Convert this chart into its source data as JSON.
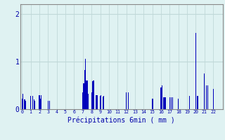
{
  "title": "",
  "xlabel": "Précipitations 6min ( mm )",
  "ylabel": "",
  "background_color": "#dff2f2",
  "bar_color": "#0000bb",
  "grid_color": "#c0d8d8",
  "axis_color": "#888888",
  "text_color": "#0000aa",
  "ylim": [
    0,
    2.2
  ],
  "yticks": [
    0,
    1,
    2
  ],
  "num_hours": 23,
  "bars_per_hour": 10,
  "bar_values": [
    0.22,
    0.32,
    0.0,
    0.2,
    0.18,
    0.0,
    0.0,
    0.0,
    0.0,
    0.0,
    0.28,
    0.0,
    0.28,
    0.0,
    0.2,
    0.18,
    0.0,
    0.0,
    0.0,
    0.0,
    0.3,
    0.22,
    0.3,
    0.0,
    0.0,
    0.0,
    0.0,
    0.0,
    0.0,
    0.0,
    0.18,
    0.0,
    0.18,
    0.0,
    0.0,
    0.0,
    0.0,
    0.0,
    0.0,
    0.0,
    0.0,
    0.0,
    0.0,
    0.0,
    0.0,
    0.0,
    0.0,
    0.0,
    0.0,
    0.0,
    0.0,
    0.0,
    0.0,
    0.0,
    0.0,
    0.0,
    0.0,
    0.0,
    0.0,
    0.0,
    0.0,
    0.0,
    0.0,
    0.0,
    0.0,
    0.0,
    0.0,
    0.0,
    0.0,
    0.0,
    0.35,
    0.55,
    0.82,
    1.05,
    0.6,
    0.6,
    0.32,
    0.0,
    0.0,
    0.0,
    0.35,
    0.58,
    0.6,
    0.6,
    0.0,
    0.3,
    0.3,
    0.3,
    0.0,
    0.0,
    0.28,
    0.3,
    0.0,
    0.26,
    0.28,
    0.0,
    0.0,
    0.0,
    0.0,
    0.0,
    0.0,
    0.0,
    0.0,
    0.0,
    0.0,
    0.0,
    0.0,
    0.0,
    0.0,
    0.0,
    0.0,
    0.0,
    0.0,
    0.0,
    0.0,
    0.0,
    0.0,
    0.0,
    0.0,
    0.0,
    0.35,
    0.0,
    0.35,
    0.0,
    0.0,
    0.0,
    0.0,
    0.0,
    0.0,
    0.0,
    0.0,
    0.0,
    0.0,
    0.0,
    0.0,
    0.0,
    0.0,
    0.0,
    0.0,
    0.0,
    0.0,
    0.0,
    0.0,
    0.0,
    0.0,
    0.0,
    0.0,
    0.0,
    0.0,
    0.0,
    0.22,
    0.22,
    0.0,
    0.0,
    0.0,
    0.0,
    0.0,
    0.0,
    0.0,
    0.0,
    0.45,
    0.5,
    0.0,
    0.25,
    0.25,
    0.25,
    0.0,
    0.0,
    0.0,
    0.0,
    0.25,
    0.0,
    0.25,
    0.25,
    0.0,
    0.0,
    0.0,
    0.0,
    0.0,
    0.0,
    0.22,
    0.0,
    0.0,
    0.0,
    0.0,
    0.0,
    0.0,
    0.0,
    0.0,
    0.0,
    0.0,
    0.0,
    0.0,
    0.28,
    0.0,
    0.0,
    0.0,
    0.0,
    0.0,
    0.0,
    1.6,
    0.0,
    0.28,
    0.0,
    0.0,
    0.0,
    0.0,
    0.0,
    0.0,
    0.0,
    0.75,
    0.0,
    0.5,
    0.0,
    0.5,
    0.0,
    0.0,
    0.0,
    0.0,
    0.0,
    0.42,
    0.0,
    0.0,
    0.0,
    0.0,
    0.0,
    0.0,
    0.0,
    0.0,
    0.0
  ]
}
